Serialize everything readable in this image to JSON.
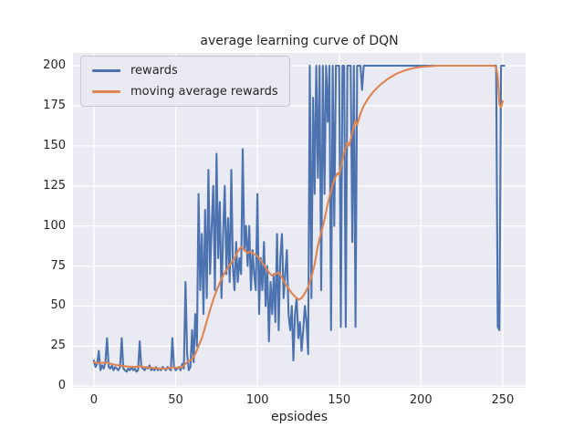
{
  "figure": {
    "title": "average learning curve of DQN",
    "xlabel": "epsiodes"
  },
  "legend": {
    "entries": [
      {
        "label": "rewards",
        "color": "#4C72B0"
      },
      {
        "label": "moving average rewards",
        "color": "#DD8452"
      }
    ]
  },
  "colors": {
    "axes_background": "#EAEAF2",
    "gridline": "#FFFFFF",
    "text": "#262626",
    "rewards_line": "#4C72B0",
    "moving_average_line": "#DD8452"
  },
  "chart_data": {
    "type": "line",
    "title": "average learning curve of DQN",
    "xlabel": "epsiodes",
    "ylabel": "",
    "x_ticks": [
      0,
      50,
      100,
      150,
      200,
      250
    ],
    "y_ticks": [
      0,
      25,
      50,
      75,
      100,
      125,
      150,
      175,
      200
    ],
    "xlim": [
      -12.8,
      264
    ],
    "ylim": [
      -1,
      208
    ],
    "grid": true,
    "legend_position": "upper left",
    "series": [
      {
        "name": "rewards",
        "color": "#4C72B0",
        "x_start": 0,
        "x_step": 1,
        "values": [
          16,
          12,
          14,
          22,
          10,
          13,
          11,
          15,
          30,
          12,
          11,
          13,
          10,
          12,
          11,
          10,
          12,
          30,
          11,
          10,
          9,
          11,
          10,
          12,
          10,
          11,
          9,
          10,
          28,
          12,
          11,
          10,
          12,
          11,
          13,
          10,
          11,
          10,
          12,
          10,
          11,
          10,
          12,
          11,
          10,
          12,
          11,
          10,
          30,
          12,
          10,
          11,
          12,
          10,
          14,
          11,
          65,
          20,
          10,
          12,
          35,
          15,
          45,
          25,
          120,
          60,
          95,
          45,
          110,
          55,
          135,
          70,
          100,
          125,
          60,
          145,
          80,
          115,
          55,
          95,
          125,
          70,
          105,
          65,
          135,
          75,
          60,
          90,
          65,
          80,
          70,
          148,
          85,
          100,
          75,
          100,
          60,
          85,
          70,
          60,
          120,
          45,
          80,
          60,
          90,
          50,
          75,
          28,
          65,
          45,
          70,
          40,
          95,
          35,
          80,
          95,
          55,
          70,
          85,
          45,
          35,
          50,
          16,
          45,
          55,
          30,
          40,
          22,
          35,
          50,
          40,
          20,
          200,
          55,
          180,
          120,
          200,
          130,
          200,
          60,
          200,
          120,
          200,
          165,
          200,
          35,
          200,
          100,
          200,
          200,
          200,
          37,
          200,
          200,
          37,
          200,
          200,
          200,
          90,
          200,
          37,
          200,
          200,
          200,
          185,
          200,
          200,
          200,
          200,
          200,
          200,
          200,
          200,
          200,
          200,
          200,
          200,
          200,
          200,
          200,
          200,
          200,
          200,
          200,
          200,
          200,
          200,
          200,
          200,
          200,
          200,
          200,
          200,
          200,
          200,
          200,
          200,
          200,
          200,
          200,
          200,
          200,
          200,
          200,
          200,
          200,
          200,
          200,
          200,
          200,
          200,
          200,
          200,
          200,
          200,
          200,
          200,
          200,
          200,
          200,
          200,
          200,
          200,
          200,
          200,
          200,
          200,
          200,
          200,
          200,
          200,
          200,
          200,
          200,
          200,
          200,
          200,
          200,
          200,
          200,
          200,
          200,
          200,
          200,
          200,
          200,
          200,
          37,
          35,
          200,
          200,
          200
        ]
      },
      {
        "name": "moving average rewards",
        "color": "#DD8452",
        "x": [
          0,
          3,
          8,
          10,
          15,
          20,
          25,
          28,
          30,
          35,
          40,
          45,
          48,
          50,
          54,
          57,
          60,
          62,
          64,
          66,
          68,
          70,
          72,
          74,
          76,
          78,
          80,
          82,
          84,
          86,
          88,
          90,
          92,
          94,
          95,
          97,
          99,
          101,
          103,
          105,
          107,
          109,
          111,
          113,
          115,
          117,
          119,
          121,
          123,
          125,
          127,
          129,
          131,
          133,
          135,
          137,
          139,
          141,
          143,
          145,
          147,
          149,
          150,
          151,
          153,
          155,
          156,
          158,
          160,
          161,
          163,
          165,
          168,
          171,
          175,
          180,
          185,
          190,
          195,
          200,
          210,
          220,
          230,
          240,
          245,
          246,
          247,
          248,
          249,
          250
        ],
        "y": [
          15,
          14.5,
          14.8,
          14,
          13,
          12.3,
          12,
          12.5,
          12,
          11.5,
          11,
          11,
          11.8,
          11.5,
          12,
          15,
          17,
          20,
          25,
          30,
          37,
          44,
          51,
          57,
          62,
          67,
          71,
          74,
          77,
          80,
          84,
          87,
          85,
          83,
          84,
          83,
          82,
          80,
          77,
          74,
          71,
          69,
          70,
          71,
          68,
          64,
          61,
          58,
          56,
          54,
          55,
          58,
          62,
          68,
          76,
          88,
          96,
          104,
          114,
          122,
          129,
          133,
          132,
          137,
          146,
          152,
          150,
          158,
          166,
          163,
          170,
          175,
          180,
          184,
          188,
          192,
          195,
          197,
          198.5,
          199.3,
          200,
          200,
          200,
          200,
          200,
          199,
          193,
          176,
          174,
          178
        ]
      }
    ]
  }
}
